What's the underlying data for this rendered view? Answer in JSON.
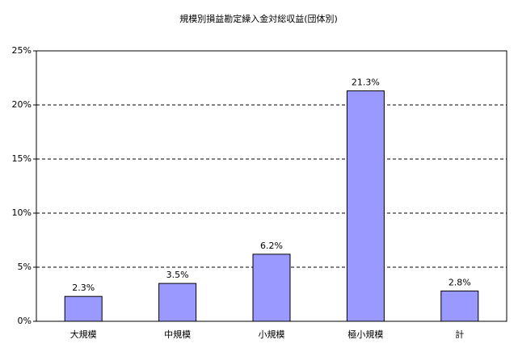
{
  "chart_data": {
    "type": "bar",
    "title": "規模別損益勘定繰入金対総収益(団体別)",
    "categories": [
      "大規模",
      "中規模",
      "小規模",
      "極小規模",
      "計"
    ],
    "values": [
      2.3,
      3.5,
      6.2,
      21.3,
      2.8
    ],
    "value_labels": [
      "2.3%",
      "3.5%",
      "6.2%",
      "21.3%",
      "2.8%"
    ],
    "color": "#9999ff",
    "ylim": [
      0,
      25
    ],
    "yticks": [
      {
        "value": 0,
        "label": "0%"
      },
      {
        "value": 5,
        "label": "5%"
      },
      {
        "value": 10,
        "label": "10%"
      },
      {
        "value": 15,
        "label": "15%"
      },
      {
        "value": 20,
        "label": "20%"
      },
      {
        "value": 25,
        "label": "25%"
      }
    ],
    "grid": true
  }
}
